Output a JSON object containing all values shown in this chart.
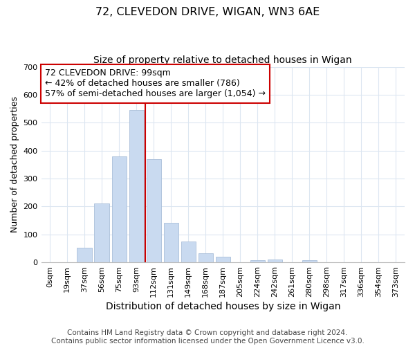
{
  "title": "72, CLEVEDON DRIVE, WIGAN, WN3 6AE",
  "subtitle": "Size of property relative to detached houses in Wigan",
  "xlabel": "Distribution of detached houses by size in Wigan",
  "ylabel": "Number of detached properties",
  "bar_labels": [
    "0sqm",
    "19sqm",
    "37sqm",
    "56sqm",
    "75sqm",
    "93sqm",
    "112sqm",
    "131sqm",
    "149sqm",
    "168sqm",
    "187sqm",
    "205sqm",
    "224sqm",
    "242sqm",
    "261sqm",
    "280sqm",
    "298sqm",
    "317sqm",
    "336sqm",
    "354sqm",
    "373sqm"
  ],
  "bar_values": [
    0,
    0,
    52,
    212,
    380,
    545,
    370,
    142,
    75,
    32,
    19,
    0,
    8,
    9,
    0,
    8,
    0,
    0,
    0,
    0,
    0
  ],
  "bar_color": "#c9daf0",
  "bar_edge_color": "#aabfda",
  "vline_x_index": 5.5,
  "vline_color": "#cc0000",
  "annotation_lines": [
    "72 CLEVEDON DRIVE: 99sqm",
    "← 42% of detached houses are smaller (786)",
    "57% of semi-detached houses are larger (1,054) →"
  ],
  "ylim": [
    0,
    700
  ],
  "yticks": [
    0,
    100,
    200,
    300,
    400,
    500,
    600,
    700
  ],
  "footer1": "Contains HM Land Registry data © Crown copyright and database right 2024.",
  "footer2": "Contains public sector information licensed under the Open Government Licence v3.0.",
  "title_fontsize": 11.5,
  "subtitle_fontsize": 10,
  "xlabel_fontsize": 10,
  "ylabel_fontsize": 9,
  "tick_fontsize": 8,
  "annotation_fontsize": 9,
  "footer_fontsize": 7.5,
  "grid_color": "#dce6f1"
}
